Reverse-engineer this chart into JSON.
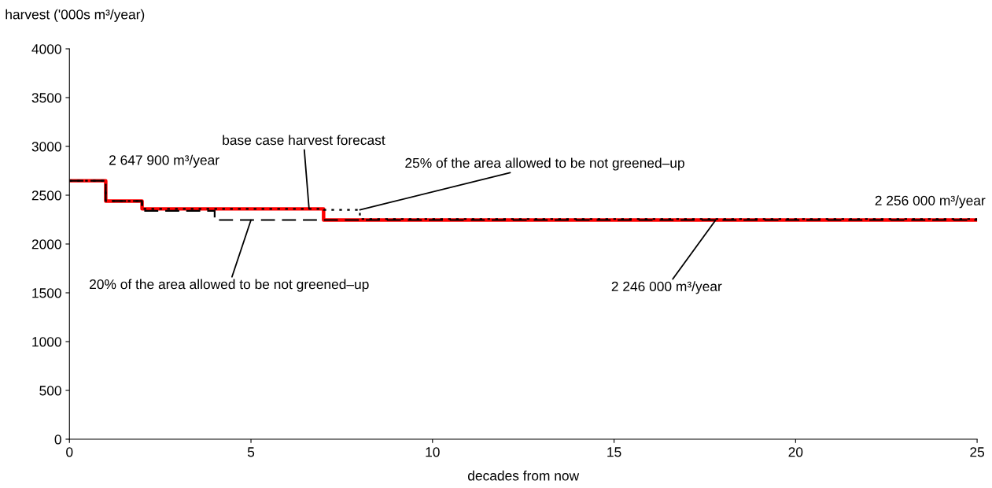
{
  "chart_data": {
    "type": "step",
    "ylabel": "harvest ('000s m³/year)",
    "xlabel": "decades from now",
    "xlim": [
      0,
      25
    ],
    "xticks": [
      0,
      5,
      10,
      15,
      20,
      25
    ],
    "ylim": [
      0,
      4000
    ],
    "yticks": [
      0,
      500,
      1000,
      1500,
      2000,
      2500,
      3000,
      3500,
      4000
    ],
    "grid": false,
    "marker": "none",
    "series": [
      {
        "color": "#ff0000",
        "line_style": "solid",
        "x": [
          0,
          1,
          2,
          7,
          25
        ],
        "values": [
          2648,
          2440,
          2360,
          2246,
          2246
        ]
      },
      {
        "color": "#000000",
        "line_style": "dotted",
        "x": [
          0,
          1,
          2,
          7,
          8,
          25
        ],
        "values": [
          2648,
          2440,
          2360,
          2350,
          2256,
          2256
        ]
      },
      {
        "color": "#000000",
        "line_style": "dashed",
        "x": [
          0,
          1,
          2,
          4,
          25
        ],
        "values": [
          2648,
          2440,
          2340,
          2246,
          2246
        ]
      }
    ],
    "annotations": [
      {
        "text": "2 647 900 m³/year",
        "x": 0.5,
        "y": 2648
      },
      {
        "text": "base case harvest forecast",
        "x": 6.6,
        "y": 2360
      },
      {
        "text": "25% of the area allowed to be not greened–up",
        "x": 8,
        "y": 2350
      },
      {
        "text": "20% of the area allowed to be not greened–up",
        "x": 5,
        "y": 2246
      },
      {
        "text": "2 246 000 m³/year",
        "x": 17.8,
        "y": 2246
      },
      {
        "text": "2 256 000 m³/year",
        "x": 22.5,
        "y": 2256
      }
    ]
  }
}
